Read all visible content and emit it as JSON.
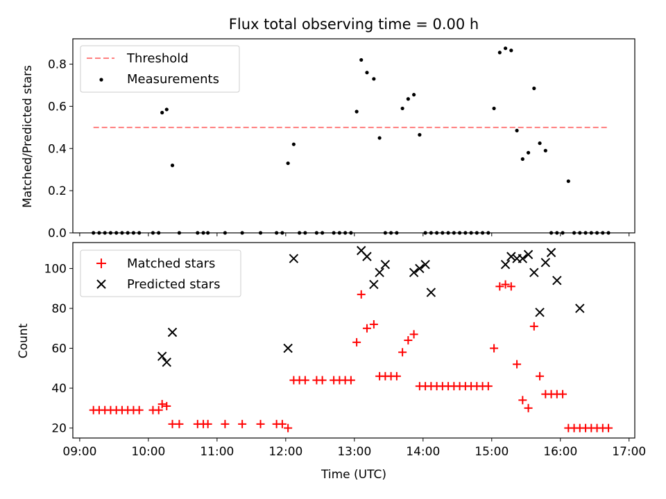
{
  "title": "Flux total observing time = 0.00 h",
  "xlabel": "Time (UTC)",
  "xticks": [
    {
      "t": 9.0,
      "label": "09:00"
    },
    {
      "t": 10.0,
      "label": "10:00"
    },
    {
      "t": 11.0,
      "label": "11:00"
    },
    {
      "t": 12.0,
      "label": "12:00"
    },
    {
      "t": 13.0,
      "label": "13:00"
    },
    {
      "t": 14.0,
      "label": "14:00"
    },
    {
      "t": 15.0,
      "label": "15:00"
    },
    {
      "t": 16.0,
      "label": "16:00"
    },
    {
      "t": 17.0,
      "label": "17:00"
    }
  ],
  "colors": {
    "threshold": "#ff7f7f",
    "measurements": "#000000",
    "matched": "#ff0000",
    "predicted": "#000000"
  },
  "chart_data": [
    {
      "type": "scatter",
      "panel": "top",
      "ylabel": "Matched/Predicted stars",
      "xlim": [
        "08:54",
        "17:05"
      ],
      "ylim": [
        0.0,
        0.92
      ],
      "yticks": [
        "0.0",
        "0.2",
        "0.4",
        "0.6",
        "0.8"
      ],
      "legend_position": "upper left",
      "series": [
        {
          "name": "Threshold",
          "style": "dashed-line",
          "x": [
            "09:12",
            "16:42"
          ],
          "y": [
            0.5,
            0.5
          ]
        },
        {
          "name": "Measurements",
          "style": "dot",
          "x": [
            "09:12",
            "09:17",
            "09:22",
            "09:27",
            "09:32",
            "09:37",
            "09:42",
            "09:47",
            "09:52",
            "10:04",
            "10:09",
            "10:12",
            "10:16",
            "10:21",
            "10:27",
            "10:43",
            "10:48",
            "10:52",
            "11:07",
            "11:22",
            "11:38",
            "11:52",
            "11:57",
            "12:02",
            "12:07",
            "12:12",
            "12:17",
            "12:27",
            "12:32",
            "12:42",
            "12:47",
            "12:52",
            "12:57",
            "13:02",
            "13:06",
            "13:11",
            "13:17",
            "13:22",
            "13:27",
            "13:32",
            "13:37",
            "13:42",
            "13:47",
            "13:52",
            "13:57",
            "14:02",
            "14:07",
            "14:12",
            "14:17",
            "14:22",
            "14:27",
            "14:32",
            "14:37",
            "14:42",
            "14:47",
            "14:52",
            "14:57",
            "15:02",
            "15:07",
            "15:12",
            "15:17",
            "15:22",
            "15:27",
            "15:32",
            "15:37",
            "15:42",
            "15:47",
            "15:52",
            "15:57",
            "16:02",
            "16:07",
            "16:12",
            "16:17",
            "16:22",
            "16:27",
            "16:32",
            "16:37",
            "16:42"
          ],
          "y": [
            0,
            0,
            0,
            0,
            0,
            0,
            0,
            0,
            0,
            0,
            0,
            0.57,
            0.585,
            0.32,
            0,
            0,
            0,
            0,
            0,
            0,
            0,
            0,
            0,
            0.33,
            0.42,
            0,
            0,
            0,
            0,
            0,
            0,
            0,
            0,
            0.575,
            0.82,
            0.76,
            0.73,
            0.45,
            0,
            0,
            0,
            0.59,
            0.635,
            0.655,
            0.465,
            0,
            0,
            0,
            0,
            0,
            0,
            0,
            0,
            0,
            0,
            0,
            0,
            0.59,
            0.855,
            0.875,
            0.865,
            0.485,
            0.35,
            0.38,
            0.685,
            0.425,
            0.39,
            0,
            0,
            0,
            0.245,
            0,
            0,
            0,
            0,
            0,
            0,
            0
          ]
        }
      ]
    },
    {
      "type": "scatter",
      "panel": "bottom",
      "ylabel": "Count",
      "xlabel": "Time (UTC)",
      "xlim": [
        "08:54",
        "17:05"
      ],
      "ylim": [
        15,
        113
      ],
      "yticks": [
        "20",
        "40",
        "60",
        "80",
        "100"
      ],
      "legend_position": "upper left",
      "series": [
        {
          "name": "Matched stars",
          "marker": "plus",
          "x": [
            "09:12",
            "09:17",
            "09:22",
            "09:27",
            "09:32",
            "09:37",
            "09:42",
            "09:47",
            "09:52",
            "10:04",
            "10:09",
            "10:12",
            "10:16",
            "10:21",
            "10:27",
            "10:43",
            "10:48",
            "10:52",
            "11:07",
            "11:22",
            "11:38",
            "11:52",
            "11:57",
            "12:02",
            "12:07",
            "12:12",
            "12:17",
            "12:27",
            "12:32",
            "12:42",
            "12:47",
            "12:52",
            "12:57",
            "13:02",
            "13:06",
            "13:11",
            "13:17",
            "13:22",
            "13:27",
            "13:32",
            "13:37",
            "13:42",
            "13:47",
            "13:52",
            "13:57",
            "14:02",
            "14:07",
            "14:12",
            "14:17",
            "14:22",
            "14:27",
            "14:32",
            "14:37",
            "14:42",
            "14:47",
            "14:52",
            "14:57",
            "15:02",
            "15:07",
            "15:12",
            "15:17",
            "15:22",
            "15:27",
            "15:32",
            "15:37",
            "15:42",
            "15:47",
            "15:52",
            "15:57",
            "16:02",
            "16:07",
            "16:12",
            "16:17",
            "16:22",
            "16:27",
            "16:32",
            "16:37",
            "16:42"
          ],
          "y": [
            29,
            29,
            29,
            29,
            29,
            29,
            29,
            29,
            29,
            29,
            29,
            32,
            31,
            22,
            22,
            22,
            22,
            22,
            22,
            22,
            22,
            22,
            22,
            20,
            44,
            44,
            44,
            44,
            44,
            44,
            44,
            44,
            44,
            63,
            87,
            70,
            72,
            46,
            46,
            46,
            46,
            58,
            64,
            67,
            41,
            41,
            41,
            41,
            41,
            41,
            41,
            41,
            41,
            41,
            41,
            41,
            41,
            60,
            91,
            92,
            91,
            52,
            34,
            30,
            71,
            46,
            37,
            37,
            37,
            37,
            20,
            20,
            20,
            20,
            20,
            20,
            20,
            20
          ]
        },
        {
          "name": "Predicted stars",
          "marker": "x",
          "x": [
            "10:12",
            "10:16",
            "10:21",
            "12:02",
            "12:07",
            "13:06",
            "13:11",
            "13:17",
            "13:22",
            "13:27",
            "13:52",
            "13:57",
            "14:02",
            "14:07",
            "15:12",
            "15:17",
            "15:22",
            "15:27",
            "15:32",
            "15:37",
            "15:42",
            "15:47",
            "15:52",
            "15:57",
            "16:17"
          ],
          "y": [
            56,
            53,
            68,
            60,
            105,
            109,
            106,
            92,
            98,
            102,
            98,
            100,
            102,
            88,
            102,
            106,
            105,
            105,
            107,
            98,
            78,
            103,
            108,
            94,
            80
          ]
        }
      ]
    }
  ]
}
